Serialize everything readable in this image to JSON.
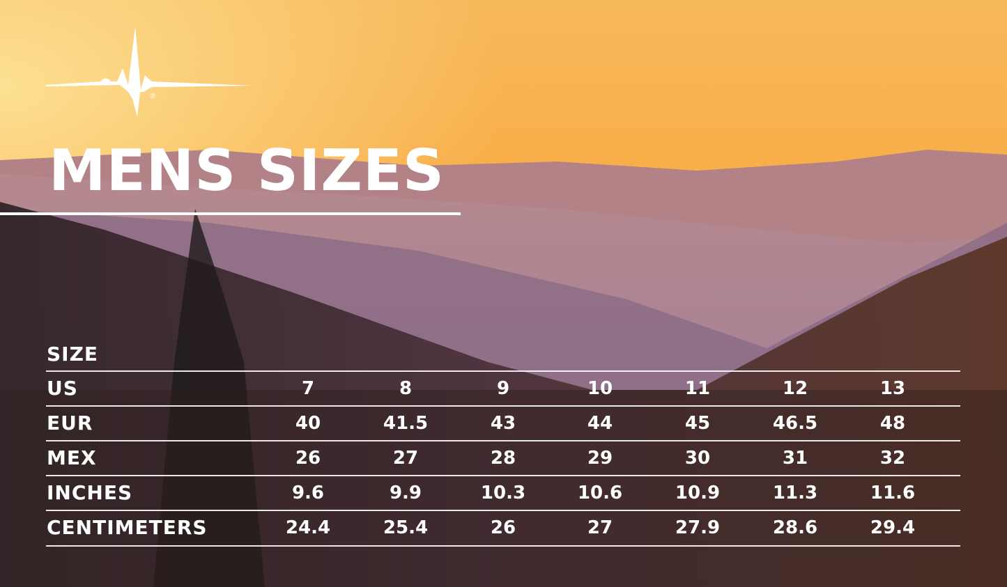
{
  "brand": {
    "logo": "heartbeat-pulse-logo",
    "registered_mark": "®"
  },
  "title": "MENS SIZES",
  "table": {
    "header": "SIZE",
    "rows": [
      {
        "label": "US",
        "values": [
          "7",
          "8",
          "9",
          "10",
          "11",
          "12",
          "13"
        ]
      },
      {
        "label": "EUR",
        "values": [
          "40",
          "41.5",
          "43",
          "44",
          "45",
          "46.5",
          "48"
        ]
      },
      {
        "label": "MEX",
        "values": [
          "26",
          "27",
          "28",
          "29",
          "30",
          "31",
          "32"
        ]
      },
      {
        "label": "INCHES",
        "values": [
          "9.6",
          "9.9",
          "10.3",
          "10.6",
          "10.9",
          "11.3",
          "11.6"
        ]
      },
      {
        "label": "CENTIMETERS",
        "values": [
          "24.4",
          "25.4",
          "26",
          "27",
          "27.9",
          "28.6",
          "29.4"
        ]
      }
    ]
  },
  "colors": {
    "sky_top": "#f6a43a",
    "haze": "#a4809a",
    "forest": "#3a2424",
    "text": "#ffffff"
  }
}
